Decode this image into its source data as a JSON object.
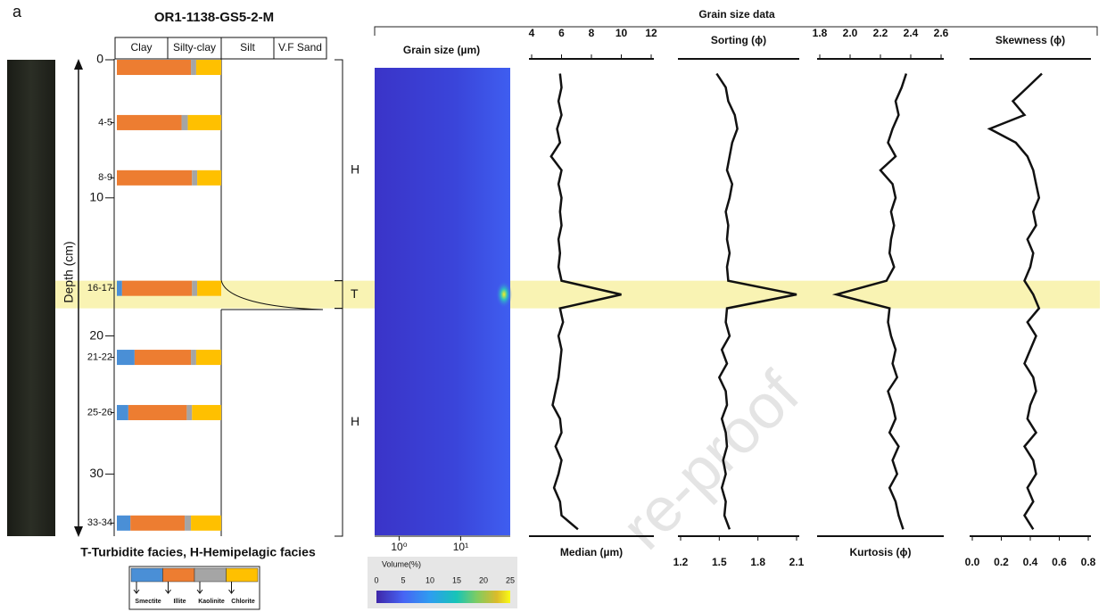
{
  "panel_label": "a",
  "core": {
    "title": "OR1-1138-GS5-2-M",
    "lithology_columns": [
      "Clay",
      "Silty-clay",
      "Silt",
      "V.F Sand"
    ],
    "depth_label": "Depth (cm)",
    "ylim": [
      0,
      34.5
    ],
    "yticks": [
      0,
      10,
      20,
      30
    ],
    "samples": {
      "labels": [
        null,
        "4-5",
        "8-9",
        "16-17",
        "21-22",
        "25-26",
        "33-34"
      ],
      "depths": [
        0,
        4,
        8,
        16,
        21,
        25,
        33
      ]
    },
    "series": [
      {
        "name": "Smectite",
        "color": "#4a8fd6",
        "values": [
          0,
          0,
          0,
          5,
          17,
          11,
          13
        ]
      },
      {
        "name": "Illite",
        "color": "#ed7d31",
        "values": [
          71,
          62,
          72,
          67,
          54,
          56,
          52
        ]
      },
      {
        "name": "Kaolinite",
        "color": "#a5a5a5",
        "values": [
          5,
          6,
          5,
          5,
          5,
          5,
          6
        ]
      },
      {
        "name": "Chlorite",
        "color": "#ffc000",
        "values": [
          24,
          32,
          23,
          23,
          24,
          28,
          29
        ]
      }
    ],
    "facies": [
      {
        "label": "H",
        "top": 0,
        "bottom": 16
      },
      {
        "label": "T",
        "top": 16,
        "bottom": 18,
        "highlight": "#f8f1a6"
      },
      {
        "label": "H",
        "top": 18,
        "bottom": 34.5
      }
    ],
    "facies_caption": "T-Turbidite facies, H-Hemipelagic facies"
  },
  "grain_size": {
    "title": "Grain size data",
    "heatmap": {
      "title": "Grain size (µm)",
      "log": true,
      "xlim": [
        0.4,
        64
      ],
      "xticks": [
        {
          "value": 1,
          "label": "10⁰"
        },
        {
          "value": 10,
          "label": "10¹"
        }
      ],
      "colorbar_label": "Volume(%)",
      "colorbar_lim": [
        0,
        25
      ],
      "colorbar_ticks": [
        0,
        5,
        10,
        15,
        20,
        25
      ]
    },
    "depths": [
      1,
      2,
      3,
      4,
      5,
      6,
      7,
      8,
      9,
      10,
      11,
      12,
      13,
      14,
      15,
      16,
      17,
      18,
      19,
      20,
      21,
      22,
      23,
      24,
      25,
      26,
      27,
      28,
      29,
      30,
      31,
      32,
      33,
      34
    ],
    "profiles": [
      {
        "axis_label": "Median (µm)",
        "label_side": "bottom",
        "xlim": [
          4,
          12
        ],
        "xticks": [
          4,
          6,
          8,
          10,
          12
        ],
        "values": [
          5.9,
          6.0,
          5.8,
          6.0,
          5.7,
          5.9,
          5.3,
          6.0,
          5.8,
          6.0,
          5.9,
          6.0,
          5.8,
          5.9,
          5.8,
          6.0,
          10.0,
          5.9,
          6.1,
          5.8,
          6.0,
          5.9,
          5.8,
          5.6,
          5.4,
          5.9,
          6.0,
          5.6,
          6.0,
          5.8,
          5.5,
          5.9,
          6.0,
          7.1
        ]
      },
      {
        "axis_label": "Sorting (ϕ)",
        "label_side": "top",
        "xlim": [
          1.2,
          2.1
        ],
        "xticks": [
          1.2,
          1.5,
          1.8,
          2.1
        ],
        "values": [
          1.48,
          1.55,
          1.57,
          1.62,
          1.64,
          1.6,
          1.58,
          1.56,
          1.6,
          1.58,
          1.55,
          1.57,
          1.56,
          1.58,
          1.56,
          1.57,
          2.1,
          1.56,
          1.55,
          1.58,
          1.52,
          1.56,
          1.5,
          1.55,
          1.56,
          1.52,
          1.55,
          1.56,
          1.53,
          1.55,
          1.52,
          1.55,
          1.54,
          1.58
        ]
      },
      {
        "axis_label": "Kurtosis (ϕ)",
        "label_side": "bottom",
        "xlim": [
          1.8,
          2.6
        ],
        "xticks": [
          1.8,
          {
            "value": 2,
            "label": "2.0"
          },
          2.2,
          2.4,
          2.6
        ],
        "values": [
          2.37,
          2.34,
          2.3,
          2.32,
          2.28,
          2.25,
          2.3,
          2.2,
          2.28,
          2.3,
          2.27,
          2.29,
          2.27,
          2.26,
          2.29,
          2.24,
          1.91,
          2.26,
          2.25,
          2.27,
          2.3,
          2.28,
          2.31,
          2.25,
          2.28,
          2.3,
          2.26,
          2.32,
          2.28,
          2.31,
          2.26,
          2.3,
          2.32,
          2.35
        ]
      },
      {
        "axis_label": "Skewness (ϕ)",
        "label_side": "top",
        "xlim": [
          0,
          0.8
        ],
        "xticks": [
          {
            "value": 0,
            "label": "0.0"
          },
          0.2,
          0.4,
          0.6,
          0.8
        ],
        "values": [
          0.48,
          0.38,
          0.28,
          0.36,
          0.12,
          0.3,
          0.38,
          0.42,
          0.44,
          0.46,
          0.42,
          0.44,
          0.38,
          0.42,
          0.4,
          0.36,
          0.42,
          0.46,
          0.38,
          0.44,
          0.4,
          0.36,
          0.42,
          0.44,
          0.4,
          0.38,
          0.44,
          0.36,
          0.42,
          0.44,
          0.38,
          0.42,
          0.36,
          0.42
        ]
      }
    ]
  },
  "watermark": "re-proof"
}
